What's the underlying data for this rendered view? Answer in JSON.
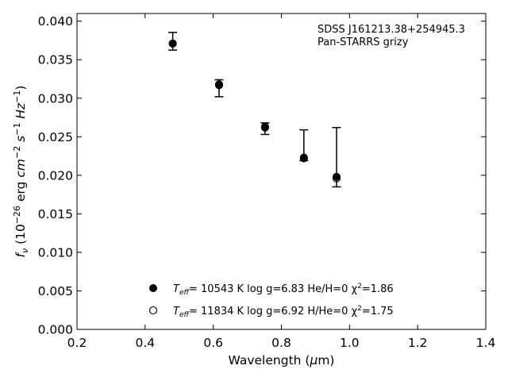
{
  "chart_data": {
    "type": "scatter",
    "title": "",
    "xlabel": "Wavelength (μm)",
    "ylabel": "f_ν (10^-26 erg cm^-2 s^-1 Hz^-1)",
    "xlim": [
      0.2,
      1.4
    ],
    "ylim": [
      0.0,
      0.041
    ],
    "xticks": [
      0.2,
      0.4,
      0.6,
      0.8,
      1.0,
      1.2,
      1.4
    ],
    "xtick_labels": [
      "0.2",
      "0.4",
      "0.6",
      "0.8",
      "1.0",
      "1.2",
      "1.4"
    ],
    "yticks": [
      0.0,
      0.005,
      0.01,
      0.015,
      0.02,
      0.025,
      0.03,
      0.035,
      0.04
    ],
    "ytick_labels": [
      "0.000",
      "0.005",
      "0.010",
      "0.015",
      "0.020",
      "0.025",
      "0.030",
      "0.035",
      "0.040"
    ],
    "annotation_lines": [
      "SDSS J161213.38+254945.3",
      "Pan-STARRS grizy"
    ],
    "annotation_position": "top-right",
    "grid": false,
    "legend_position": "bottom-center",
    "observed": {
      "x": [
        0.481,
        0.617,
        0.752,
        0.866,
        0.962
      ],
      "y": [
        0.0371,
        0.0318,
        0.0263,
        0.0221,
        0.0197
      ],
      "err_low": [
        0.00085,
        0.0016,
        0.001,
        0.0002,
        0.0012
      ],
      "err_high": [
        0.00145,
        0.0006,
        0.0005,
        0.0038,
        0.0065
      ]
    },
    "series": [
      {
        "name": "Teff= 10543 K  log g=6.83  He/H=0  χ2=1.86",
        "legend_parts": {
          "t": "T",
          "sub": "eff",
          "rest": "= 10543 K  log g=6.83  He/H=0  χ",
          "sup": "2",
          "tail": "=1.86"
        },
        "marker": "filled-circle",
        "x": [
          0.481,
          0.617,
          0.752,
          0.866,
          0.962
        ],
        "y": [
          0.0371,
          0.0318,
          0.0263,
          0.0222,
          0.0198
        ]
      },
      {
        "name": "Teff= 11834 K  log g=6.92  H/He=0  χ2=1.75",
        "legend_parts": {
          "t": "T",
          "sub": "eff",
          "rest": "= 11834 K  log g=6.92  H/He=0  χ",
          "sup": "2",
          "tail": "=1.75"
        },
        "marker": "open-circle",
        "x": [
          0.481,
          0.617,
          0.752,
          0.866,
          0.962
        ],
        "y": [
          0.0371,
          0.0317,
          0.0262,
          0.0223,
          0.0196
        ]
      }
    ],
    "colors": {
      "marker": "#000000",
      "axis": "#000000",
      "background": "#ffffff"
    }
  }
}
